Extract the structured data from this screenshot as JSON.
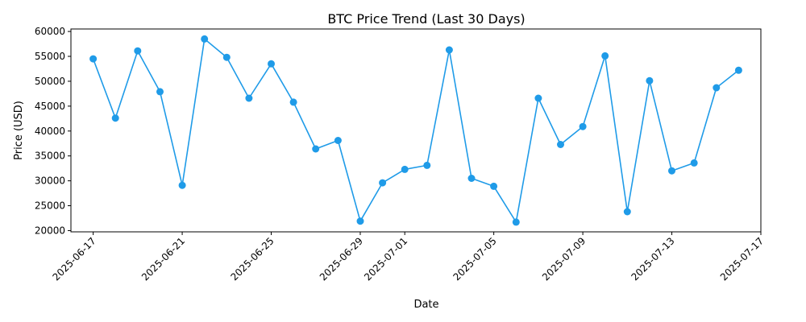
{
  "colors": {
    "series": "#1f9be8",
    "axis": "#000000",
    "background": "#ffffff"
  },
  "chart_data": {
    "type": "line",
    "title": "BTC Price Trend (Last 30 Days)",
    "xlabel": "Date",
    "ylabel": "Price (USD)",
    "grid": false,
    "marker": "circle",
    "xlim": [
      "2025-06-16",
      "2025-07-17"
    ],
    "ylim": [
      19750,
      60500
    ],
    "x_ticks": [
      "2025-06-17",
      "2025-06-21",
      "2025-06-25",
      "2025-06-29",
      "2025-07-01",
      "2025-07-05",
      "2025-07-09",
      "2025-07-13",
      "2025-07-17"
    ],
    "y_ticks": [
      20000,
      25000,
      30000,
      35000,
      40000,
      45000,
      50000,
      55000,
      60000
    ],
    "y_tick_labels": [
      "20000",
      "25000",
      "30000",
      "35000",
      "40000",
      "45000",
      "50000",
      "55000",
      "60000"
    ],
    "series": [
      {
        "x": [
          "2025-06-17",
          "2025-06-18",
          "2025-06-19",
          "2025-06-20",
          "2025-06-21",
          "2025-06-22",
          "2025-06-23",
          "2025-06-24",
          "2025-06-25",
          "2025-06-26",
          "2025-06-27",
          "2025-06-28",
          "2025-06-29",
          "2025-06-30",
          "2025-07-01",
          "2025-07-02",
          "2025-07-03",
          "2025-07-04",
          "2025-07-05",
          "2025-07-06",
          "2025-07-07",
          "2025-07-08",
          "2025-07-09",
          "2025-07-10",
          "2025-07-11",
          "2025-07-12",
          "2025-07-13",
          "2025-07-14",
          "2025-07-15",
          "2025-07-16"
        ],
        "values": [
          54500,
          42600,
          56100,
          47900,
          29100,
          58500,
          54800,
          46600,
          53500,
          45800,
          36400,
          38100,
          21900,
          29600,
          32300,
          33100,
          56300,
          30500,
          28900,
          21700,
          46600,
          37300,
          40900,
          55100,
          23800,
          50100,
          32000,
          33600,
          48700,
          52200
        ]
      }
    ]
  }
}
